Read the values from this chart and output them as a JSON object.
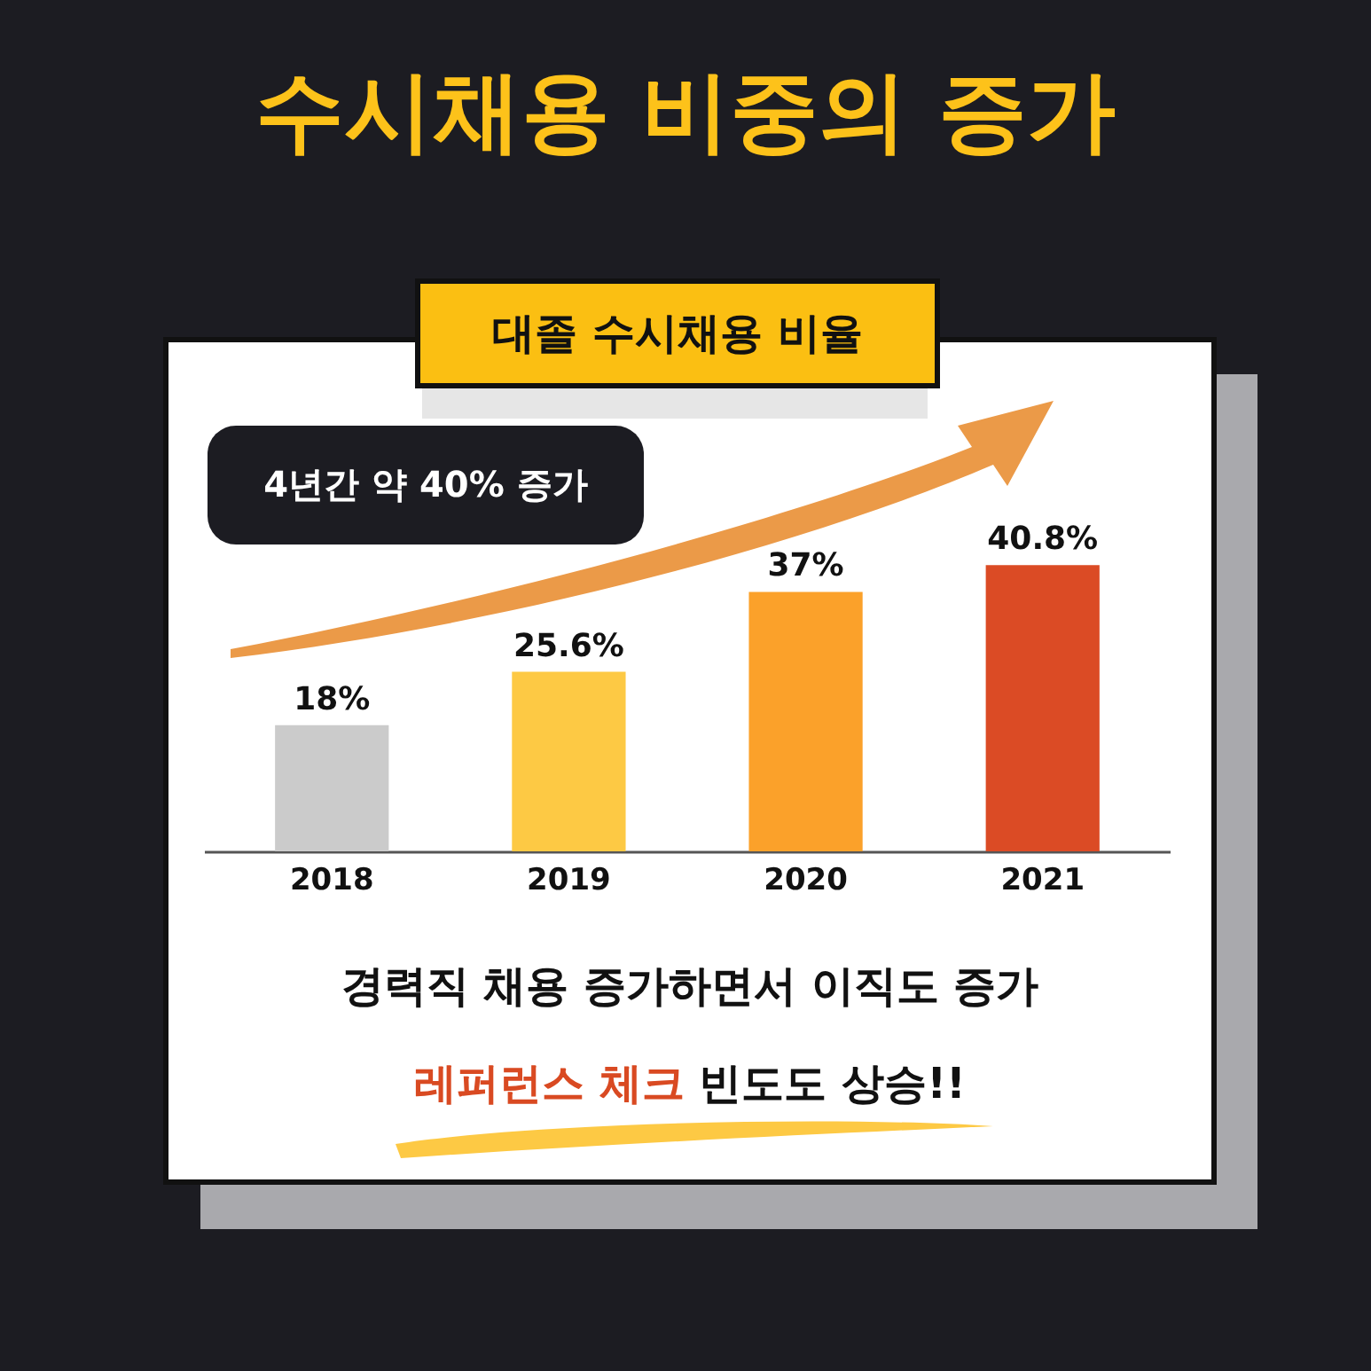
{
  "chart_data": {
    "type": "bar",
    "title": "수시채용 비중의 증가",
    "subtitle": "대졸 수시채용 비율",
    "categories": [
      "2018",
      "2019",
      "2020",
      "2021"
    ],
    "values": [
      18,
      25.6,
      37,
      40.8
    ],
    "colors": [
      "#cbcbcb",
      "#fdc944",
      "#fba12a",
      "#db4b25"
    ],
    "value_labels": [
      "18%",
      "25.6%",
      "37%",
      "40.8%"
    ],
    "annotations": [
      "4년간 약 40% 증가",
      "경력직 채용 증가하면서 이직도 증가",
      "레퍼런스 체크",
      "빈도도 상승!!"
    ]
  }
}
